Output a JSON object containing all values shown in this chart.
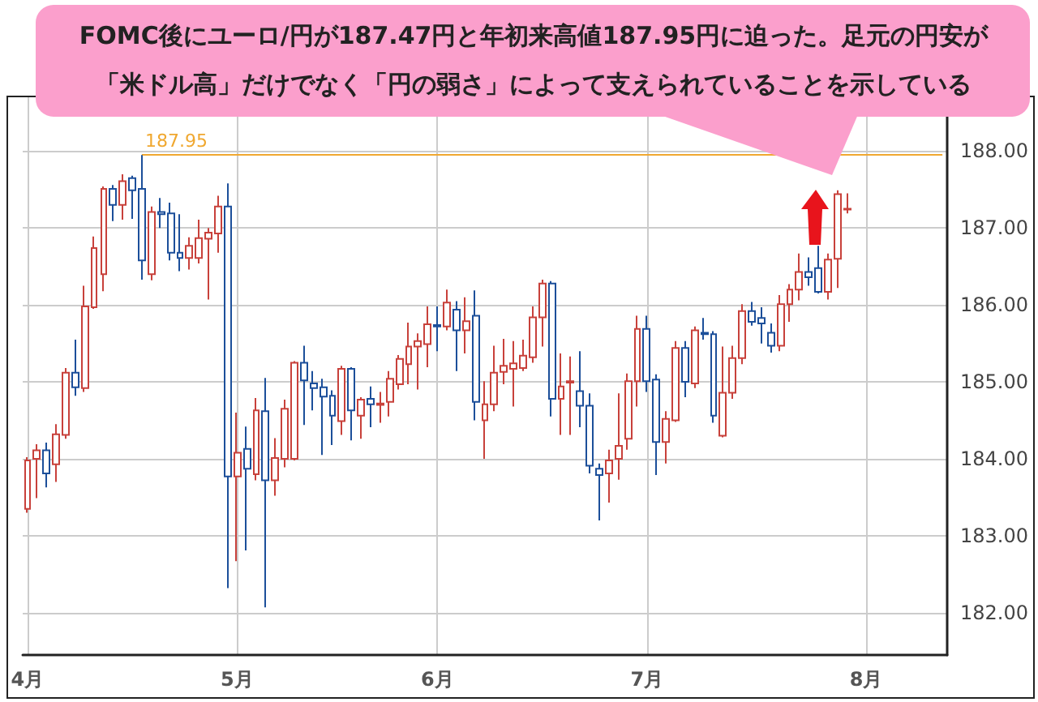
{
  "chart_data": {
    "type": "candlestick",
    "title": "FOMC後にユーロ/円が187.47円と年初来高値187.95円に迫った。足元の円安が「米ドル高」だけでなく「円の弱さ」によって支えられていることを示している",
    "categories": [
      "4月",
      null,
      null,
      null,
      null,
      null,
      null,
      null,
      null,
      null,
      null,
      null,
      null,
      null,
      null,
      null,
      null,
      null,
      null,
      null,
      null,
      null,
      "5月",
      null,
      null,
      null,
      null,
      null,
      null,
      null,
      null,
      null,
      null,
      null,
      null,
      null,
      null,
      null,
      null,
      null,
      null,
      null,
      null,
      "6月",
      null,
      null,
      null,
      null,
      null,
      null,
      null,
      null,
      null,
      null,
      null,
      null,
      null,
      null,
      null,
      null,
      null,
      null,
      null,
      null,
      null,
      "7月",
      null,
      null,
      null,
      null,
      null,
      null,
      null,
      null,
      null,
      null,
      null,
      null,
      null,
      null,
      null,
      null,
      null,
      null,
      null,
      null,
      null,
      null,
      "8月",
      null,
      null,
      null,
      null,
      null,
      null,
      null,
      null
    ],
    "ohlc": [
      [
        183.35,
        184.02,
        183.3,
        183.98
      ],
      [
        184.0,
        184.19,
        183.49,
        184.11
      ],
      [
        184.11,
        184.21,
        183.63,
        183.81
      ],
      [
        183.93,
        184.45,
        183.7,
        184.32
      ],
      [
        184.31,
        185.18,
        184.26,
        185.12
      ],
      [
        185.12,
        185.55,
        184.82,
        184.93
      ],
      [
        184.92,
        186.25,
        184.87,
        185.98
      ],
      [
        185.97,
        186.89,
        185.95,
        186.74
      ],
      [
        186.4,
        187.54,
        186.18,
        187.51
      ],
      [
        187.51,
        187.56,
        187.09,
        187.3
      ],
      [
        187.3,
        187.7,
        187.11,
        187.61
      ],
      [
        187.65,
        187.68,
        187.12,
        187.49
      ],
      [
        187.51,
        187.95,
        186.33,
        186.58
      ],
      [
        186.4,
        187.28,
        186.32,
        187.21
      ],
      [
        187.21,
        187.39,
        187.0,
        187.18
      ],
      [
        187.19,
        187.33,
        186.58,
        186.68
      ],
      [
        186.68,
        187.18,
        186.44,
        186.61
      ],
      [
        186.61,
        186.88,
        186.46,
        186.77
      ],
      [
        186.61,
        187.11,
        186.54,
        186.87
      ],
      [
        186.86,
        187.0,
        186.07,
        186.94
      ],
      [
        186.93,
        187.42,
        186.68,
        187.28
      ],
      [
        187.28,
        187.58,
        182.32,
        183.77
      ],
      [
        183.77,
        184.6,
        182.67,
        184.08
      ],
      [
        184.13,
        184.42,
        182.81,
        183.87
      ],
      [
        183.8,
        184.79,
        183.72,
        184.63
      ],
      [
        184.62,
        185.05,
        182.07,
        183.72
      ],
      [
        183.72,
        184.27,
        183.52,
        184.01
      ],
      [
        184.0,
        184.77,
        183.89,
        184.65
      ],
      [
        184.0,
        185.27,
        183.98,
        185.25
      ],
      [
        185.25,
        185.47,
        184.44,
        185.02
      ],
      [
        184.98,
        185.14,
        184.63,
        184.92
      ],
      [
        184.93,
        185.04,
        184.05,
        184.81
      ],
      [
        184.82,
        184.89,
        184.18,
        184.56
      ],
      [
        184.49,
        185.21,
        184.31,
        185.17
      ],
      [
        185.17,
        185.19,
        184.24,
        184.63
      ],
      [
        184.56,
        184.8,
        184.26,
        184.77
      ],
      [
        184.78,
        184.94,
        184.41,
        184.71
      ],
      [
        184.7,
        184.87,
        184.47,
        184.72
      ],
      [
        184.74,
        185.14,
        184.55,
        185.04
      ],
      [
        184.97,
        185.35,
        184.9,
        185.3
      ],
      [
        185.23,
        185.77,
        184.97,
        185.46
      ],
      [
        185.46,
        185.63,
        184.9,
        185.53
      ],
      [
        185.49,
        185.98,
        185.19,
        185.75
      ],
      [
        185.74,
        185.98,
        185.4,
        185.72
      ],
      [
        185.72,
        186.2,
        185.67,
        186.03
      ],
      [
        185.94,
        186.05,
        185.14,
        185.67
      ],
      [
        185.67,
        186.1,
        185.37,
        185.79
      ],
      [
        185.86,
        186.19,
        184.5,
        184.74
      ],
      [
        184.5,
        185.01,
        184.0,
        184.71
      ],
      [
        184.71,
        185.47,
        184.62,
        185.12
      ],
      [
        185.13,
        185.56,
        184.97,
        185.21
      ],
      [
        185.17,
        185.53,
        184.68,
        185.24
      ],
      [
        185.18,
        185.55,
        185.14,
        185.34
      ],
      [
        185.32,
        185.98,
        185.25,
        185.84
      ],
      [
        185.84,
        186.33,
        185.46,
        186.28
      ],
      [
        186.28,
        186.31,
        184.55,
        184.78
      ],
      [
        184.78,
        185.37,
        184.31,
        184.94
      ],
      [
        184.99,
        185.33,
        184.31,
        185.01
      ],
      [
        184.88,
        185.4,
        184.41,
        184.69
      ],
      [
        184.69,
        184.85,
        183.81,
        183.91
      ],
      [
        183.87,
        183.94,
        183.2,
        183.79
      ],
      [
        183.81,
        184.12,
        183.43,
        183.98
      ],
      [
        184.0,
        184.85,
        183.73,
        184.17
      ],
      [
        184.26,
        185.11,
        184.12,
        185.01
      ],
      [
        185.01,
        185.86,
        184.68,
        185.69
      ],
      [
        185.69,
        185.86,
        184.87,
        185.01
      ],
      [
        185.03,
        185.1,
        183.79,
        184.22
      ],
      [
        184.22,
        184.62,
        183.94,
        184.52
      ],
      [
        184.5,
        185.53,
        184.48,
        185.44
      ],
      [
        185.44,
        185.53,
        184.8,
        185.0
      ],
      [
        184.98,
        185.72,
        184.92,
        185.67
      ],
      [
        185.64,
        185.83,
        185.55,
        185.62
      ],
      [
        185.62,
        185.66,
        184.47,
        184.56
      ],
      [
        184.3,
        185.46,
        184.28,
        184.86
      ],
      [
        184.86,
        185.47,
        184.78,
        185.31
      ],
      [
        185.31,
        186.01,
        185.23,
        185.92
      ],
      [
        185.92,
        186.04,
        185.73,
        185.78
      ],
      [
        185.83,
        185.97,
        185.5,
        185.76
      ],
      [
        185.64,
        185.76,
        185.38,
        185.47
      ],
      [
        185.47,
        186.13,
        185.4,
        186.01
      ],
      [
        186.01,
        186.27,
        185.78,
        186.2
      ],
      [
        186.2,
        186.67,
        186.06,
        186.43
      ],
      [
        186.43,
        186.62,
        186.25,
        186.36
      ],
      [
        186.48,
        186.77,
        186.15,
        186.17
      ],
      [
        186.17,
        186.67,
        186.07,
        186.59
      ],
      [
        186.6,
        187.49,
        186.22,
        187.44
      ],
      [
        187.24,
        187.45,
        187.19,
        187.25
      ],
      null,
      null,
      null,
      null,
      null,
      null,
      null,
      null,
      null,
      null
    ],
    "colors": [
      "#c8413b",
      "#c8413b",
      "#1c4f9a",
      "#c8413b",
      "#c8413b",
      "#1c4f9a",
      "#c8413b",
      "#c8413b",
      "#c8413b",
      "#1c4f9a",
      "#c8413b",
      "#1c4f9a",
      "#1c4f9a",
      "#c8413b",
      "#1c4f9a",
      "#1c4f9a",
      "#1c4f9a",
      "#c8413b",
      "#c8413b",
      "#c8413b",
      "#c8413b",
      "#1c4f9a",
      "#c8413b",
      "#1c4f9a",
      "#c8413b",
      "#1c4f9a",
      "#c8413b",
      "#c8413b",
      "#c8413b",
      "#1c4f9a",
      "#1c4f9a",
      "#1c4f9a",
      "#1c4f9a",
      "#c8413b",
      "#1c4f9a",
      "#c8413b",
      "#1c4f9a",
      "#c8413b",
      "#c8413b",
      "#c8413b",
      "#c8413b",
      "#c8413b",
      "#c8413b",
      "#1c4f9a",
      "#c8413b",
      "#1c4f9a",
      "#c8413b",
      "#1c4f9a",
      "#c8413b",
      "#c8413b",
      "#c8413b",
      "#c8413b",
      "#c8413b",
      "#c8413b",
      "#c8413b",
      "#1c4f9a",
      "#c8413b",
      "#c8413b",
      "#1c4f9a",
      "#1c4f9a",
      "#1c4f9a",
      "#c8413b",
      "#c8413b",
      "#c8413b",
      "#c8413b",
      "#1c4f9a",
      "#1c4f9a",
      "#c8413b",
      "#c8413b",
      "#1c4f9a",
      "#c8413b",
      "#1c4f9a",
      "#1c4f9a",
      "#c8413b",
      "#c8413b",
      "#c8413b",
      "#1c4f9a",
      "#1c4f9a",
      "#1c4f9a",
      "#c8413b",
      "#c8413b",
      "#c8413b",
      "#1c4f9a",
      "#1c4f9a",
      "#c8413b",
      "#c8413b",
      "#c8413b",
      null,
      null,
      null,
      null,
      null,
      null,
      null,
      null,
      null,
      null
    ],
    "ylim": [
      181.45,
      188.7
    ],
    "yticks": [
      {
        "value": 182,
        "label": "182.00"
      },
      {
        "value": 183,
        "label": "183.00"
      },
      {
        "value": 184,
        "label": "184.00"
      },
      {
        "value": 185,
        "label": "185.00"
      },
      {
        "value": 186,
        "label": "186.00"
      },
      {
        "value": 187,
        "label": "187.00"
      },
      {
        "value": 188,
        "label": "188.00"
      }
    ],
    "grid": true,
    "ref_lines": [
      {
        "axis": "y",
        "value": 187.95,
        "label": "187.95",
        "color": "#f0a830"
      }
    ]
  }
}
